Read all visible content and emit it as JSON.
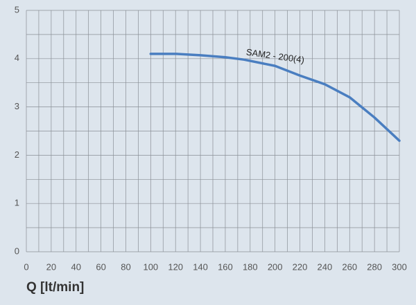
{
  "chart_data": {
    "type": "line",
    "x_label": "Q [lt/min]",
    "x": [
      100,
      120,
      140,
      160,
      175,
      200,
      220,
      240,
      260,
      280,
      300
    ],
    "series": [
      {
        "name": "SAM2 - 200(4)",
        "color": "#4a7ec0",
        "values": [
          4.1,
          4.1,
          4.07,
          4.03,
          3.98,
          3.85,
          3.65,
          3.47,
          3.2,
          2.78,
          2.3
        ]
      }
    ],
    "xlim": [
      0,
      300
    ],
    "xticks": [
      0,
      20,
      40,
      60,
      80,
      100,
      120,
      140,
      160,
      180,
      200,
      220,
      240,
      260,
      280,
      300
    ],
    "ylim": [
      0,
      5
    ],
    "yticks": [
      0,
      1,
      2,
      3,
      4,
      5
    ],
    "xgrid": [
      0,
      10,
      20,
      30,
      40,
      50,
      60,
      70,
      80,
      90,
      100,
      110,
      120,
      130,
      140,
      150,
      160,
      170,
      180,
      190,
      200,
      210,
      220,
      230,
      240,
      250,
      260,
      270,
      280,
      290,
      300
    ],
    "ygrid": [
      0,
      0.5,
      1,
      1.5,
      2,
      2.5,
      3,
      3.5,
      4,
      4.5,
      5
    ],
    "grid": true
  }
}
